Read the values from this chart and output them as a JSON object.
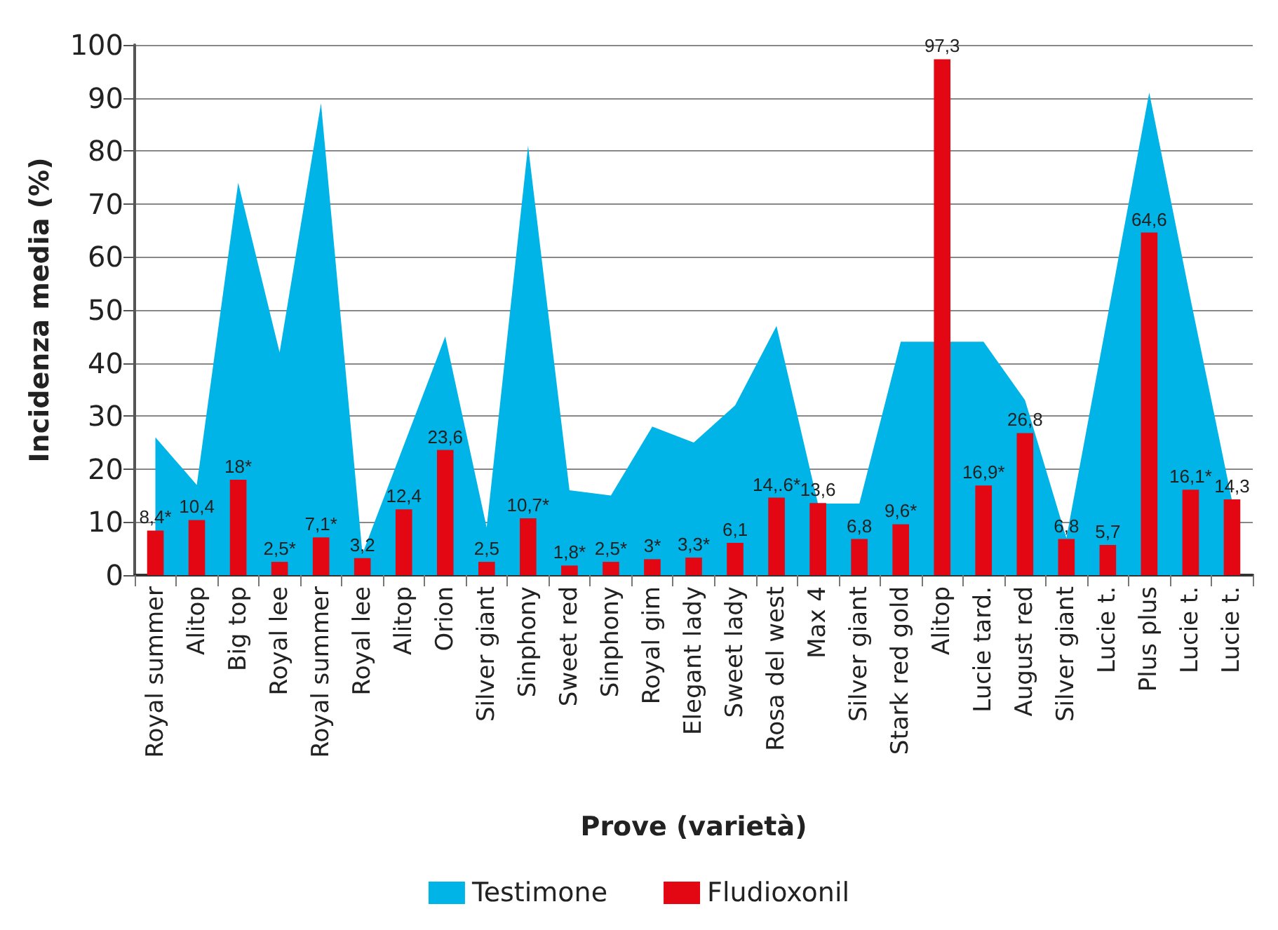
{
  "chart_data": {
    "type": "bar",
    "xlabel": "Prove (varietà)",
    "ylabel": "Incidenza media (%)",
    "categories": [
      "Royal summer",
      "Alitop",
      "Big top",
      "Royal lee",
      "Royal summer",
      "Royal lee",
      "Alitop",
      "Orion",
      "Silver giant",
      "Sinphony",
      "Sweet red",
      "Sinphony",
      "Royal gim",
      "Elegant lady",
      "Sweet lady",
      "Rosa del west",
      "Max 4",
      "Silver giant",
      "Stark red gold",
      "Alitop",
      "Lucie tard.",
      "August red",
      "Silver giant",
      "Lucie t.",
      "Plus plus",
      "Lucie t.",
      "Lucie t."
    ],
    "series": [
      {
        "name": "Testimone",
        "type": "area",
        "color": "#00b4e8",
        "values": [
          26,
          17,
          74,
          42,
          89,
          4,
          null,
          45,
          9,
          81,
          16,
          15,
          28,
          25,
          32,
          47,
          13.5,
          13.5,
          44,
          null,
          44,
          33,
          7,
          null,
          91,
          52,
          14
        ]
      },
      {
        "name": "Fludioxonil",
        "type": "bar",
        "color": "#e30613",
        "values": [
          8.4,
          10.4,
          18,
          2.5,
          7.1,
          3.2,
          12.4,
          23.6,
          2.5,
          10.7,
          1.8,
          2.5,
          3,
          3.3,
          6.1,
          14.6,
          13.6,
          6.8,
          9.6,
          97.3,
          16.9,
          26.8,
          6.8,
          5.7,
          64.6,
          16.1,
          14.3
        ],
        "value_labels": [
          "8,4*",
          "10,4",
          "18*",
          "2,5*",
          "7,1*",
          "3,2",
          "12,4",
          "23,6",
          "2,5",
          "10,7*",
          "1,8*",
          "2,5*",
          "3*",
          "3,3*",
          "6,1",
          "14,.6*",
          "13,6",
          "6,8",
          "9,6*",
          "97,3",
          "16,9*",
          "26,8",
          "6,8",
          "5,7",
          "64,6",
          "16,1*",
          "14,3"
        ]
      }
    ],
    "ylim": [
      0,
      100
    ],
    "yticks": [
      0,
      10,
      20,
      30,
      40,
      50,
      60,
      70,
      80,
      90,
      100
    ],
    "grid": "y",
    "legend": "bottom"
  }
}
